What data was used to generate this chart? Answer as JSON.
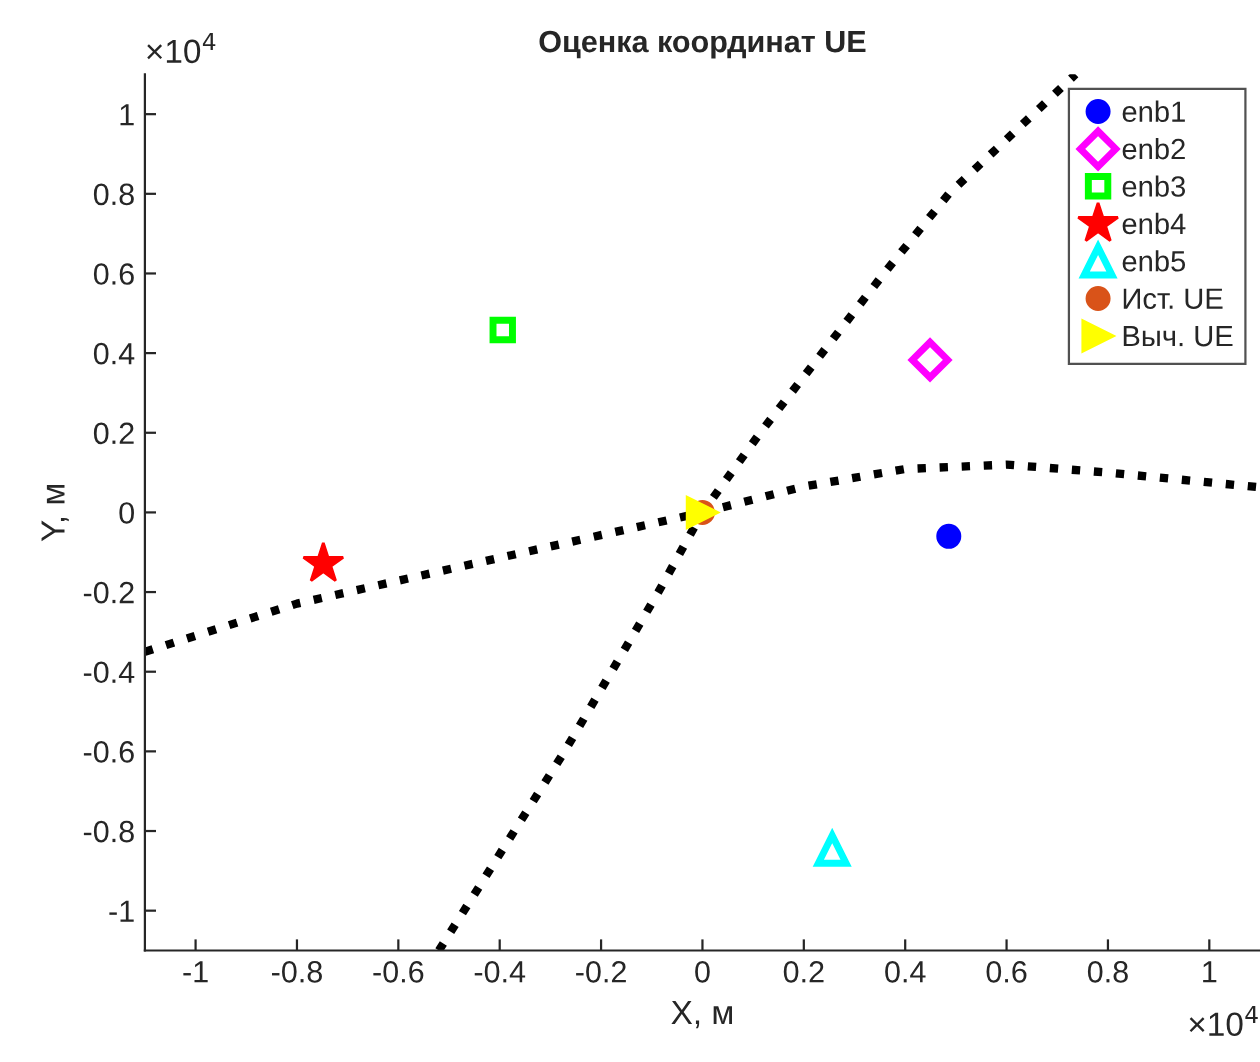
{
  "chart_data": {
    "type": "scatter",
    "title": "Оценка координат UE",
    "xlabel": "X, м",
    "ylabel": "Y, м",
    "xlim": [
      -1.1,
      1.1
    ],
    "ylim": [
      -1.1,
      1.1
    ],
    "xticks": [
      -1,
      -0.8,
      -0.6,
      -0.4,
      -0.2,
      0,
      0.2,
      0.4,
      0.6,
      0.8,
      1
    ],
    "yticks": [
      -1,
      -0.8,
      -0.6,
      -0.4,
      -0.2,
      0,
      0.2,
      0.4,
      0.6,
      0.8,
      1
    ],
    "annotations": [
      "×10$^{4}$",
      "×10$^{4}$"
    ],
    "grid": false,
    "legend": "top right",
    "series": [
      {
        "type": "line",
        "color": "#000000",
        "line_style": "dotted",
        "marker": "none",
        "x": [
          -0.52,
          -0.272,
          -0.087,
          0,
          0.114,
          0.358,
          0.486,
          0.736
        ],
        "values": [
          -1.1,
          -0.6,
          -0.2,
          0,
          0.2,
          0.6,
          0.8,
          1.1
        ]
      },
      {
        "type": "line",
        "color": "#000000",
        "line_style": "dotted",
        "marker": "none",
        "x": [
          -1.1,
          -0.8,
          -0.4,
          0,
          0.2,
          0.4,
          0.6,
          0.8,
          1.1
        ],
        "values": [
          -0.35,
          -0.229,
          -0.114,
          0,
          0.065,
          0.109,
          0.12,
          0.1,
          0.063
        ]
      },
      {
        "name": "enb1",
        "color": "#0000ff",
        "marker": "circle",
        "x": [
          0.486
        ],
        "values": [
          -0.06
        ]
      },
      {
        "name": "enb2",
        "color": "#ff00ff",
        "marker": "diamond",
        "x": [
          0.449
        ],
        "values": [
          0.383
        ]
      },
      {
        "name": "enb3",
        "color": "#00ff00",
        "marker": "square",
        "x": [
          -0.394
        ],
        "values": [
          0.458
        ]
      },
      {
        "name": "enb4",
        "color": "#ff0000",
        "marker": "star",
        "x": [
          -0.748
        ],
        "values": [
          -0.129
        ]
      },
      {
        "name": "enb5",
        "color": "#00ffff",
        "marker": "triangle",
        "x": [
          0.256
        ],
        "values": [
          -0.846
        ]
      },
      {
        "name": "Ист. UE",
        "color": "#d95319",
        "marker": "circle",
        "x": [
          0
        ],
        "values": [
          0
        ]
      },
      {
        "name": "Выч. UE",
        "color": "#ffff00",
        "marker": "triangle_right",
        "x": [
          0
        ],
        "values": [
          0
        ]
      }
    ]
  }
}
